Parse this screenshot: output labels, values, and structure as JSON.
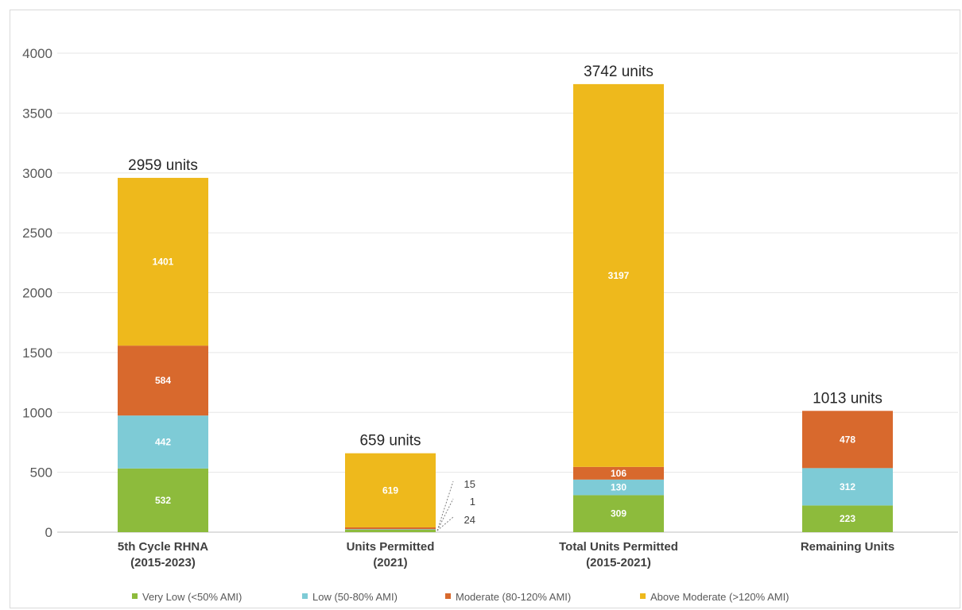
{
  "chart_data": {
    "type": "bar",
    "stacked": true,
    "categories": [
      [
        "5th Cycle RHNA",
        "(2015-2023)"
      ],
      [
        "Units Permitted",
        "(2021)"
      ],
      [
        "Total Units Permitted",
        "(2015-2021)"
      ],
      [
        "Remaining Units"
      ]
    ],
    "series": [
      {
        "name": "Very Low (<50% AMI)",
        "color": "#8dbb3c",
        "values": [
          532,
          24,
          309,
          223
        ]
      },
      {
        "name": "Low (50-80% AMI)",
        "color": "#7ecbd6",
        "values": [
          442,
          1,
          130,
          312
        ]
      },
      {
        "name": "Moderate (80-120% AMI)",
        "color": "#d8692d",
        "values": [
          584,
          15,
          106,
          478
        ]
      },
      {
        "name": "Above Moderate (>120% AMI)",
        "color": "#eeb91c",
        "values": [
          1401,
          619,
          3197,
          0
        ]
      }
    ],
    "totals": [
      "2959 units",
      "659 units",
      "3742 units",
      "1013 units"
    ],
    "yticks": [
      "0",
      "500",
      "1000",
      "1500",
      "2000",
      "2500",
      "3000",
      "3500",
      "4000"
    ],
    "ylim": [
      0,
      4000
    ],
    "grid": true,
    "legend_position": "bottom",
    "side_labels": {
      "category": 1,
      "labels": [
        "15",
        "1",
        "24"
      ]
    }
  }
}
